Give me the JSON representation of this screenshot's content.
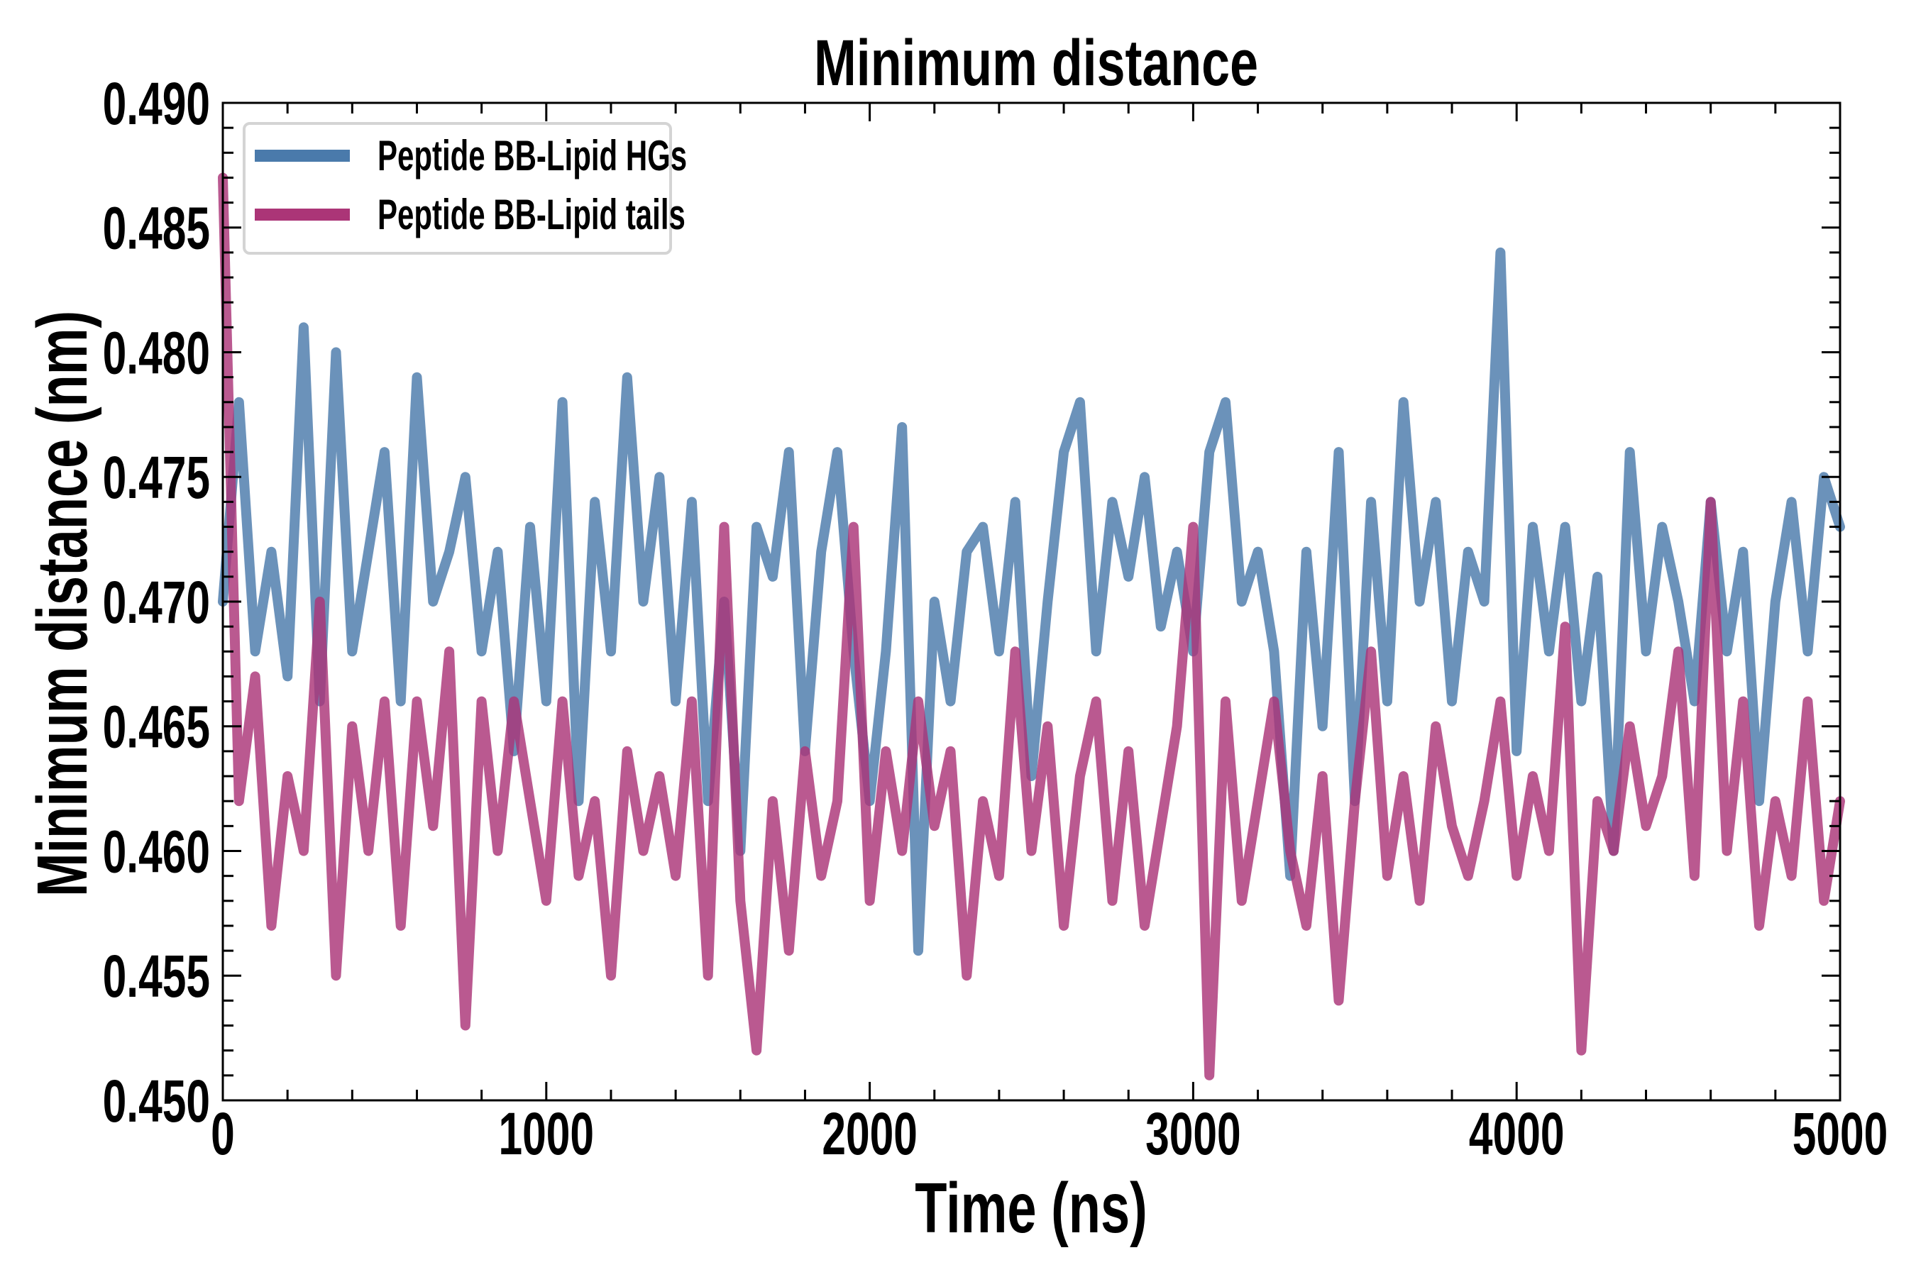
{
  "chart_data": {
    "type": "line",
    "title": "Minimum distance",
    "xlabel": "Time (ns)",
    "ylabel": "Minimum distance (nm)",
    "xlim": [
      0,
      5000
    ],
    "ylim": [
      0.45,
      0.49
    ],
    "x_ticks": [
      "0",
      "1000",
      "2000",
      "3000",
      "4000",
      "5000"
    ],
    "x_tick_values": [
      0,
      1000,
      2000,
      3000,
      4000,
      5000
    ],
    "y_ticks": [
      "0.450",
      "0.455",
      "0.460",
      "0.465",
      "0.470",
      "0.475",
      "0.480",
      "0.485",
      "0.490"
    ],
    "y_tick_values": [
      0.45,
      0.455,
      0.46,
      0.465,
      0.47,
      0.475,
      0.48,
      0.485,
      0.49
    ],
    "x_minor_step": 200,
    "y_minor_step": 0.001,
    "grid": false,
    "legend_position": "top-left",
    "x": [
      0,
      50,
      100,
      150,
      200,
      250,
      300,
      350,
      400,
      450,
      500,
      550,
      600,
      650,
      700,
      750,
      800,
      850,
      900,
      950,
      1000,
      1050,
      1100,
      1150,
      1200,
      1250,
      1300,
      1350,
      1400,
      1450,
      1500,
      1550,
      1600,
      1650,
      1700,
      1750,
      1800,
      1850,
      1900,
      1950,
      2000,
      2050,
      2100,
      2150,
      2200,
      2250,
      2300,
      2350,
      2400,
      2450,
      2500,
      2550,
      2600,
      2650,
      2700,
      2750,
      2800,
      2850,
      2900,
      2950,
      3000,
      3050,
      3100,
      3150,
      3200,
      3250,
      3300,
      3350,
      3400,
      3450,
      3500,
      3550,
      3600,
      3650,
      3700,
      3750,
      3800,
      3850,
      3900,
      3950,
      4000,
      4050,
      4100,
      4150,
      4200,
      4250,
      4300,
      4350,
      4400,
      4450,
      4500,
      4550,
      4600,
      4650,
      4700,
      4750,
      4800,
      4850,
      4900,
      4950,
      5000
    ],
    "series": [
      {
        "name": "Peptide BB-Lipid HGs",
        "color": "#4a7aab",
        "values": [
          0.47,
          0.478,
          0.468,
          0.472,
          0.467,
          0.481,
          0.466,
          0.48,
          0.468,
          0.472,
          0.476,
          0.466,
          0.479,
          0.47,
          0.472,
          0.475,
          0.468,
          0.472,
          0.464,
          0.473,
          0.466,
          0.478,
          0.462,
          0.474,
          0.468,
          0.479,
          0.47,
          0.475,
          0.466,
          0.474,
          0.462,
          0.47,
          0.46,
          0.473,
          0.471,
          0.476,
          0.464,
          0.472,
          0.476,
          0.468,
          0.462,
          0.468,
          0.477,
          0.456,
          0.47,
          0.466,
          0.472,
          0.473,
          0.468,
          0.474,
          0.463,
          0.47,
          0.476,
          0.478,
          0.468,
          0.474,
          0.471,
          0.475,
          0.469,
          0.472,
          0.468,
          0.476,
          0.478,
          0.47,
          0.472,
          0.468,
          0.459,
          0.472,
          0.465,
          0.476,
          0.462,
          0.474,
          0.466,
          0.478,
          0.47,
          0.474,
          0.466,
          0.472,
          0.47,
          0.484,
          0.464,
          0.473,
          0.468,
          0.473,
          0.466,
          0.471,
          0.46,
          0.476,
          0.468,
          0.473,
          0.47,
          0.466,
          0.474,
          0.468,
          0.472,
          0.462,
          0.47,
          0.474,
          0.468,
          0.475,
          0.473
        ]
      },
      {
        "name": "Peptide BB-Lipid tails",
        "color": "#ab3577",
        "values": [
          0.487,
          0.462,
          0.467,
          0.457,
          0.463,
          0.46,
          0.47,
          0.455,
          0.465,
          0.46,
          0.466,
          0.457,
          0.466,
          0.461,
          0.468,
          0.453,
          0.466,
          0.46,
          0.466,
          0.462,
          0.458,
          0.466,
          0.459,
          0.462,
          0.455,
          0.464,
          0.46,
          0.463,
          0.459,
          0.466,
          0.455,
          0.473,
          0.458,
          0.452,
          0.462,
          0.456,
          0.464,
          0.459,
          0.462,
          0.473,
          0.458,
          0.464,
          0.46,
          0.466,
          0.461,
          0.464,
          0.455,
          0.462,
          0.459,
          0.468,
          0.46,
          0.465,
          0.457,
          0.463,
          0.466,
          0.458,
          0.464,
          0.457,
          0.461,
          0.465,
          0.473,
          0.451,
          0.466,
          0.458,
          0.462,
          0.466,
          0.46,
          0.457,
          0.463,
          0.454,
          0.462,
          0.468,
          0.459,
          0.463,
          0.458,
          0.465,
          0.461,
          0.459,
          0.462,
          0.466,
          0.459,
          0.463,
          0.46,
          0.469,
          0.452,
          0.462,
          0.46,
          0.465,
          0.461,
          0.463,
          0.468,
          0.459,
          0.474,
          0.46,
          0.466,
          0.457,
          0.462,
          0.459,
          0.466,
          0.458,
          0.462
        ]
      }
    ]
  }
}
